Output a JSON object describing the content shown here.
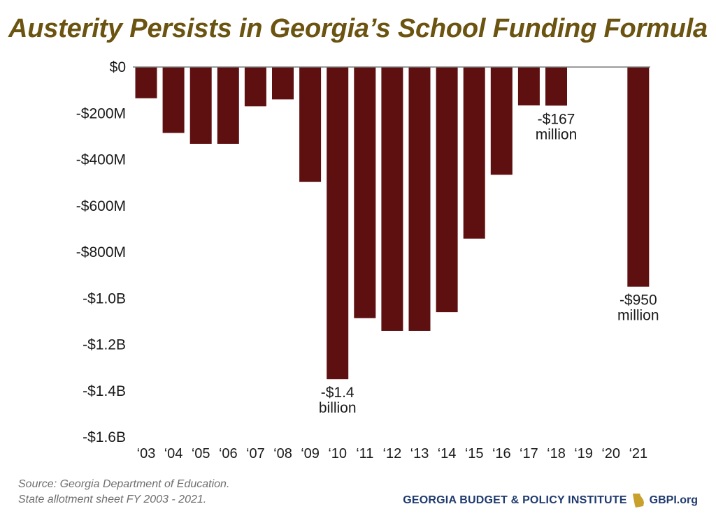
{
  "colors": {
    "title": "#6b5310",
    "bar": "#5e0f10",
    "axis": "#7a7a7a",
    "brand_text": "#1f3a6e",
    "brand_state": "#c7a12b"
  },
  "source": {
    "line1": "Source: Georgia Department of Education.",
    "line2": "State allotment sheet FY 2003 - 2021."
  },
  "footer": {
    "org_name": "GEORGIA BUDGET & POLICY INSTITUTE",
    "site": "GBPI.org",
    "logo_icon": "georgia-state-icon"
  },
  "chart_data": {
    "type": "bar",
    "title": "Austerity Persists in Georgia’s School Funding Formula",
    "xlabel": "",
    "ylabel": "",
    "categories": [
      "‘03",
      "‘04",
      "‘05",
      "‘06",
      "‘07",
      "‘08",
      "‘09",
      "‘10",
      "‘11",
      "‘12",
      "‘13",
      "‘14",
      "‘15",
      "‘16",
      "‘17",
      "‘18",
      "‘19",
      "‘20",
      "‘21"
    ],
    "values": [
      -135,
      -285,
      -332,
      -332,
      -170,
      -140,
      -497,
      -1350,
      -1086,
      -1141,
      -1141,
      -1060,
      -742,
      -466,
      -166,
      -167,
      0,
      0,
      -950
    ],
    "ylim": [
      -1600,
      0
    ],
    "yticks": [
      {
        "value": 0,
        "label": "$0"
      },
      {
        "value": -200,
        "label": "-$200M"
      },
      {
        "value": -400,
        "label": "-$400M"
      },
      {
        "value": -600,
        "label": "-$600M"
      },
      {
        "value": -800,
        "label": "-$800M"
      },
      {
        "value": -1000,
        "label": "-$1.0B"
      },
      {
        "value": -1200,
        "label": "-$1.2B"
      },
      {
        "value": -1400,
        "label": "-$1.4B"
      },
      {
        "value": -1600,
        "label": "-$1.6B"
      }
    ],
    "units": "millions of dollars",
    "grid": false,
    "annotations": [
      {
        "category_index": 7,
        "lines": [
          "-$1.4",
          "billion"
        ],
        "placement": "below-bar"
      },
      {
        "category_index": 15,
        "lines": [
          "-$167",
          "million"
        ],
        "placement": "below-bar"
      },
      {
        "category_index": 18,
        "lines": [
          "-$950",
          "million"
        ],
        "placement": "below-bar"
      }
    ]
  }
}
